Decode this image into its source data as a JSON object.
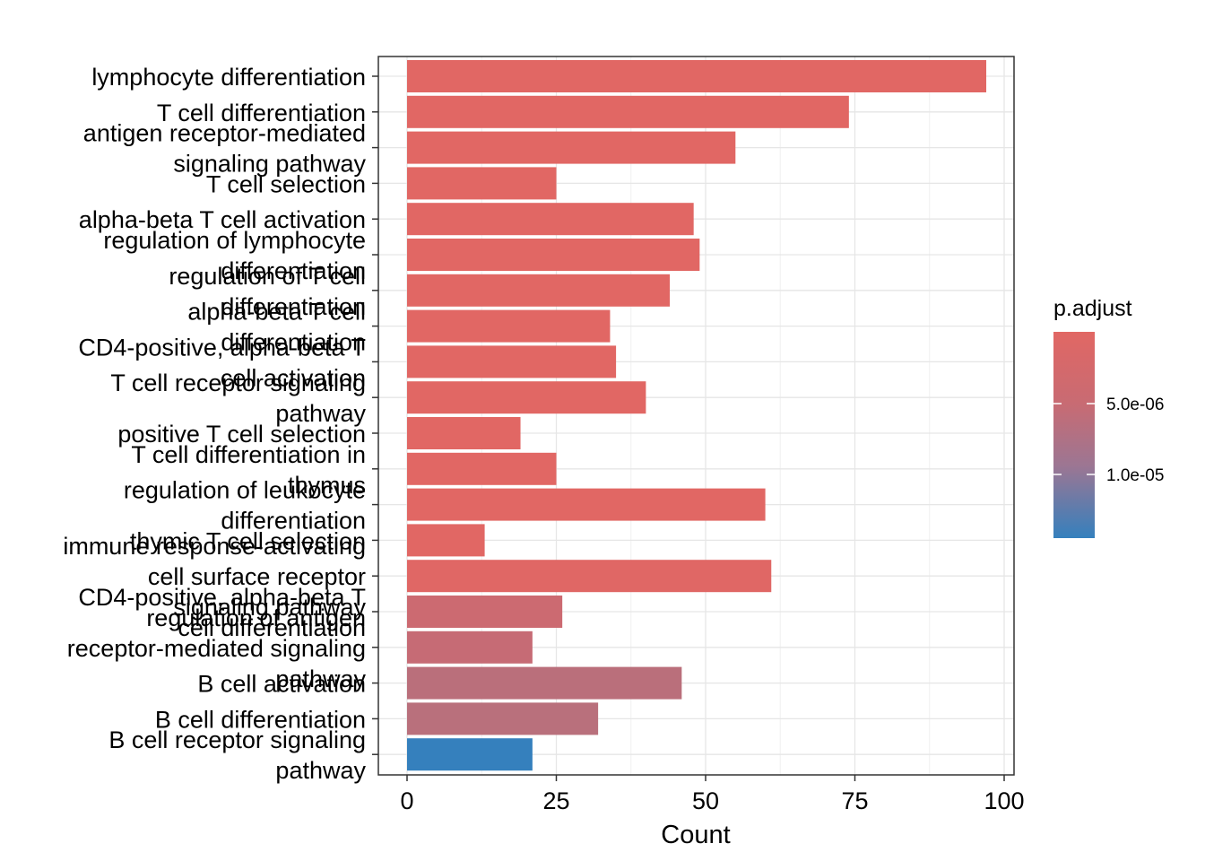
{
  "chart_data": {
    "type": "bar",
    "orientation": "horizontal",
    "xlabel": "Count",
    "ylabel": "",
    "xlim": [
      0,
      102
    ],
    "xticks": [
      "0",
      "25",
      "50",
      "75",
      "100"
    ],
    "grid": true,
    "legend_placement": "right",
    "legend": {
      "title": "p.adjust",
      "labels": [
        "5.0e-06",
        "1.0e-05"
      ],
      "colors": [
        "#E16764",
        "#3580BD"
      ]
    },
    "categories": [
      "lymphocyte differentiation",
      "T cell differentiation",
      "antigen receptor-mediated signaling pathway",
      "T cell selection",
      "alpha-beta T cell activation",
      "regulation of lymphocyte differentiation",
      "regulation of T cell differentiation",
      "alpha-beta T cell differentiation",
      "CD4-positive, alpha-beta T cell activation",
      "T cell receptor signaling pathway",
      "positive T cell selection",
      "T cell differentiation in thymus",
      "regulation of leukocyte differentiation",
      "thymic T cell selection",
      "immune response-activating cell surface receptor signaling pathway",
      "CD4-positive, alpha-beta T cell differentiation",
      "regulation of antigen receptor-mediated signaling pathway",
      "B cell activation",
      "B cell differentiation",
      "B cell receptor signaling pathway"
    ],
    "category_lines": [
      [
        "lymphocyte differentiation"
      ],
      [
        "T cell differentiation"
      ],
      [
        "antigen receptor-mediated",
        "signaling pathway"
      ],
      [
        "T cell selection"
      ],
      [
        "alpha-beta T cell activation"
      ],
      [
        "regulation of lymphocyte",
        "differentiation"
      ],
      [
        "regulation of T cell",
        "differentiation"
      ],
      [
        "alpha-beta T cell",
        "differentiation"
      ],
      [
        "CD4-positive, alpha-beta T",
        "cell activation"
      ],
      [
        "T cell receptor signaling",
        "pathway"
      ],
      [
        "positive T cell selection"
      ],
      [
        "T cell differentiation in",
        "thymus"
      ],
      [
        "regulation of leukocyte",
        "differentiation"
      ],
      [
        "thymic T cell selection"
      ],
      [
        "immune response-activating",
        "cell surface receptor",
        "signaling pathway"
      ],
      [
        "CD4-positive, alpha-beta T",
        "cell differentiation"
      ],
      [
        "regulation of antigen",
        "receptor-mediated signaling",
        "pathway"
      ],
      [
        "B cell activation"
      ],
      [
        "B cell differentiation"
      ],
      [
        "B cell receptor signaling",
        "pathway"
      ]
    ],
    "values": [
      97,
      74,
      55,
      25,
      48,
      49,
      44,
      34,
      35,
      40,
      19,
      25,
      60,
      13,
      61,
      26,
      21,
      46,
      32,
      21
    ],
    "colors": [
      "#E16764",
      "#E16764",
      "#E16764",
      "#E16764",
      "#E16764",
      "#E16764",
      "#E16764",
      "#E16764",
      "#E16764",
      "#E16764",
      "#E16764",
      "#E16764",
      "#E16764",
      "#E16764",
      "#E06765",
      "#CC6A71",
      "#C66B75",
      "#BA6F7B",
      "#B9707C",
      "#3580BD"
    ]
  }
}
